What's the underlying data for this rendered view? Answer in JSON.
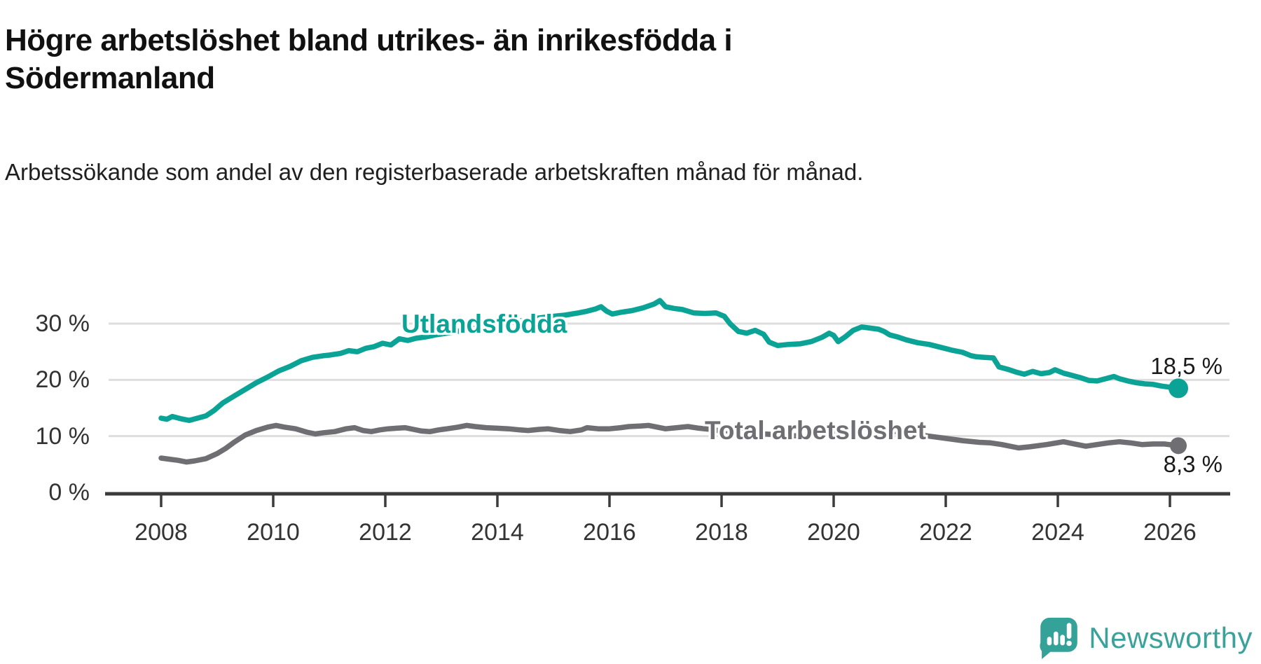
{
  "header": {
    "title": "Högre arbetslöshet bland utrikes- än inrikesfödda i Södermanland",
    "subtitle": "Arbetssökande som andel av den registerbaserade arbetskraften månad för månad."
  },
  "chart_data": {
    "type": "line",
    "title": "Högre arbetslöshet bland utrikes- än inrikesfödda i Södermanland",
    "subtitle": "Arbetssökande som andel av den registerbaserade arbetskraften månad för månad.",
    "grid": "horizontal",
    "legend_position": "inline-labels-on-lines",
    "colors": {
      "accent_teal": "#0ba396",
      "line_gray": "#6e6e73",
      "gridline": "#dedede",
      "axis": "#3b3b3b",
      "tick_text": "#333333"
    },
    "x_axis": {
      "label": "",
      "range": [
        2007.05,
        2027.05
      ],
      "ticks": [
        2008,
        2010,
        2012,
        2014,
        2016,
        2018,
        2020,
        2022,
        2024,
        2026
      ],
      "tick_labels": [
        "2008",
        "2010",
        "2012",
        "2014",
        "2016",
        "2018",
        "2020",
        "2022",
        "2024",
        "2026"
      ]
    },
    "y_axis": {
      "label": "",
      "range": [
        0,
        35.5
      ],
      "ticks": [
        0,
        10,
        20,
        30
      ],
      "tick_labels": [
        "0 %",
        "10 %",
        "20 %",
        "30 %"
      ]
    },
    "series": [
      {
        "name": "Utlandsfödda",
        "color": "#0ba396",
        "end_value": 18.5,
        "end_label": "18,5 %",
        "points": [
          [
            2008.0,
            13.2
          ],
          [
            2008.1,
            13.0
          ],
          [
            2008.2,
            13.5
          ],
          [
            2008.35,
            13.1
          ],
          [
            2008.5,
            12.8
          ],
          [
            2008.65,
            13.2
          ],
          [
            2008.8,
            13.6
          ],
          [
            2008.95,
            14.6
          ],
          [
            2009.1,
            15.9
          ],
          [
            2009.3,
            17.1
          ],
          [
            2009.5,
            18.3
          ],
          [
            2009.7,
            19.5
          ],
          [
            2009.9,
            20.5
          ],
          [
            2010.1,
            21.6
          ],
          [
            2010.3,
            22.4
          ],
          [
            2010.5,
            23.4
          ],
          [
            2010.7,
            24.0
          ],
          [
            2010.9,
            24.3
          ],
          [
            2011.0,
            24.4
          ],
          [
            2011.2,
            24.7
          ],
          [
            2011.35,
            25.2
          ],
          [
            2011.5,
            25.0
          ],
          [
            2011.65,
            25.6
          ],
          [
            2011.8,
            25.9
          ],
          [
            2011.95,
            26.5
          ],
          [
            2012.1,
            26.2
          ],
          [
            2012.25,
            27.3
          ],
          [
            2012.4,
            27.0
          ],
          [
            2012.55,
            27.4
          ],
          [
            2012.7,
            27.6
          ],
          [
            2012.9,
            28.0
          ],
          [
            2013.1,
            28.3
          ],
          [
            2013.4,
            28.8
          ],
          [
            2013.7,
            29.3
          ],
          [
            2014.0,
            29.9
          ],
          [
            2014.3,
            30.3
          ],
          [
            2014.6,
            30.8
          ],
          [
            2014.9,
            31.2
          ],
          [
            2015.2,
            31.5
          ],
          [
            2015.45,
            31.9
          ],
          [
            2015.6,
            32.2
          ],
          [
            2015.75,
            32.6
          ],
          [
            2015.85,
            33.0
          ],
          [
            2015.95,
            32.2
          ],
          [
            2016.05,
            31.7
          ],
          [
            2016.2,
            32.0
          ],
          [
            2016.4,
            32.3
          ],
          [
            2016.6,
            32.8
          ],
          [
            2016.8,
            33.5
          ],
          [
            2016.9,
            34.1
          ],
          [
            2017.0,
            33.0
          ],
          [
            2017.15,
            32.7
          ],
          [
            2017.3,
            32.5
          ],
          [
            2017.5,
            31.9
          ],
          [
            2017.7,
            31.8
          ],
          [
            2017.9,
            31.9
          ],
          [
            2018.05,
            31.3
          ],
          [
            2018.15,
            30.0
          ],
          [
            2018.3,
            28.6
          ],
          [
            2018.45,
            28.3
          ],
          [
            2018.6,
            28.8
          ],
          [
            2018.75,
            28.1
          ],
          [
            2018.85,
            26.7
          ],
          [
            2019.0,
            26.1
          ],
          [
            2019.2,
            26.3
          ],
          [
            2019.4,
            26.4
          ],
          [
            2019.6,
            26.8
          ],
          [
            2019.8,
            27.6
          ],
          [
            2019.92,
            28.3
          ],
          [
            2020.0,
            27.9
          ],
          [
            2020.08,
            26.8
          ],
          [
            2020.2,
            27.6
          ],
          [
            2020.35,
            28.8
          ],
          [
            2020.5,
            29.4
          ],
          [
            2020.65,
            29.2
          ],
          [
            2020.8,
            29.0
          ],
          [
            2020.9,
            28.6
          ],
          [
            2021.0,
            28.0
          ],
          [
            2021.15,
            27.6
          ],
          [
            2021.3,
            27.1
          ],
          [
            2021.5,
            26.6
          ],
          [
            2021.7,
            26.3
          ],
          [
            2021.9,
            25.8
          ],
          [
            2022.1,
            25.3
          ],
          [
            2022.3,
            24.9
          ],
          [
            2022.45,
            24.3
          ],
          [
            2022.55,
            24.1
          ],
          [
            2022.7,
            24.0
          ],
          [
            2022.85,
            23.9
          ],
          [
            2022.95,
            22.3
          ],
          [
            2023.1,
            21.9
          ],
          [
            2023.25,
            21.4
          ],
          [
            2023.4,
            21.0
          ],
          [
            2023.55,
            21.5
          ],
          [
            2023.7,
            21.1
          ],
          [
            2023.85,
            21.3
          ],
          [
            2023.95,
            21.8
          ],
          [
            2024.1,
            21.2
          ],
          [
            2024.25,
            20.8
          ],
          [
            2024.4,
            20.4
          ],
          [
            2024.55,
            19.9
          ],
          [
            2024.7,
            19.8
          ],
          [
            2024.85,
            20.2
          ],
          [
            2025.0,
            20.6
          ],
          [
            2025.1,
            20.2
          ],
          [
            2025.25,
            19.8
          ],
          [
            2025.4,
            19.5
          ],
          [
            2025.55,
            19.3
          ],
          [
            2025.7,
            19.2
          ],
          [
            2025.85,
            18.9
          ],
          [
            2026.0,
            18.7
          ],
          [
            2026.15,
            18.5
          ]
        ]
      },
      {
        "name": "Total arbetslöshet",
        "color": "#6e6e73",
        "end_value": 8.3,
        "end_label": "8,3 %",
        "points": [
          [
            2008.0,
            6.1
          ],
          [
            2008.15,
            5.9
          ],
          [
            2008.3,
            5.7
          ],
          [
            2008.45,
            5.4
          ],
          [
            2008.6,
            5.6
          ],
          [
            2008.8,
            6.0
          ],
          [
            2009.0,
            6.9
          ],
          [
            2009.15,
            7.8
          ],
          [
            2009.3,
            8.9
          ],
          [
            2009.5,
            10.2
          ],
          [
            2009.7,
            11.0
          ],
          [
            2009.9,
            11.6
          ],
          [
            2010.05,
            11.9
          ],
          [
            2010.2,
            11.6
          ],
          [
            2010.4,
            11.3
          ],
          [
            2010.6,
            10.7
          ],
          [
            2010.75,
            10.4
          ],
          [
            2010.9,
            10.6
          ],
          [
            2011.1,
            10.8
          ],
          [
            2011.3,
            11.3
          ],
          [
            2011.45,
            11.5
          ],
          [
            2011.6,
            11.0
          ],
          [
            2011.75,
            10.8
          ],
          [
            2011.9,
            11.1
          ],
          [
            2012.05,
            11.3
          ],
          [
            2012.2,
            11.4
          ],
          [
            2012.35,
            11.5
          ],
          [
            2012.5,
            11.2
          ],
          [
            2012.65,
            10.9
          ],
          [
            2012.8,
            10.8
          ],
          [
            2012.95,
            11.1
          ],
          [
            2013.1,
            11.3
          ],
          [
            2013.3,
            11.6
          ],
          [
            2013.45,
            11.9
          ],
          [
            2013.6,
            11.7
          ],
          [
            2013.8,
            11.5
          ],
          [
            2014.0,
            11.4
          ],
          [
            2014.2,
            11.3
          ],
          [
            2014.4,
            11.1
          ],
          [
            2014.55,
            11.0
          ],
          [
            2014.75,
            11.2
          ],
          [
            2014.9,
            11.3
          ],
          [
            2015.1,
            11.0
          ],
          [
            2015.3,
            10.8
          ],
          [
            2015.5,
            11.1
          ],
          [
            2015.6,
            11.5
          ],
          [
            2015.8,
            11.3
          ],
          [
            2016.0,
            11.3
          ],
          [
            2016.2,
            11.5
          ],
          [
            2016.35,
            11.7
          ],
          [
            2016.55,
            11.8
          ],
          [
            2016.7,
            11.9
          ],
          [
            2016.85,
            11.6
          ],
          [
            2017.0,
            11.3
          ],
          [
            2017.2,
            11.5
          ],
          [
            2017.4,
            11.7
          ],
          [
            2017.6,
            11.4
          ],
          [
            2017.8,
            11.2
          ],
          [
            2018.0,
            10.9
          ],
          [
            2018.3,
            10.7
          ],
          [
            2018.6,
            10.5
          ],
          [
            2018.9,
            10.3
          ],
          [
            2019.2,
            10.1
          ],
          [
            2019.5,
            10.0
          ],
          [
            2019.8,
            10.2
          ],
          [
            2020.1,
            10.6
          ],
          [
            2020.35,
            11.3
          ],
          [
            2020.5,
            11.5
          ],
          [
            2020.7,
            11.3
          ],
          [
            2020.9,
            11.0
          ],
          [
            2021.1,
            10.8
          ],
          [
            2021.4,
            10.4
          ],
          [
            2021.7,
            10.0
          ],
          [
            2022.0,
            9.6
          ],
          [
            2022.3,
            9.2
          ],
          [
            2022.6,
            8.9
          ],
          [
            2022.8,
            8.8
          ],
          [
            2023.0,
            8.5
          ],
          [
            2023.3,
            7.9
          ],
          [
            2023.5,
            8.1
          ],
          [
            2023.8,
            8.5
          ],
          [
            2024.1,
            9.0
          ],
          [
            2024.3,
            8.6
          ],
          [
            2024.5,
            8.2
          ],
          [
            2024.7,
            8.5
          ],
          [
            2024.9,
            8.8
          ],
          [
            2025.1,
            9.0
          ],
          [
            2025.3,
            8.8
          ],
          [
            2025.5,
            8.5
          ],
          [
            2025.7,
            8.6
          ],
          [
            2025.9,
            8.6
          ],
          [
            2026.15,
            8.3
          ]
        ]
      }
    ]
  },
  "footer": {
    "brand": "Newsworthy",
    "logo_icon": "newsworthy-speech-bubble-bar-chart-icon",
    "logo_color": "#35a29a"
  }
}
